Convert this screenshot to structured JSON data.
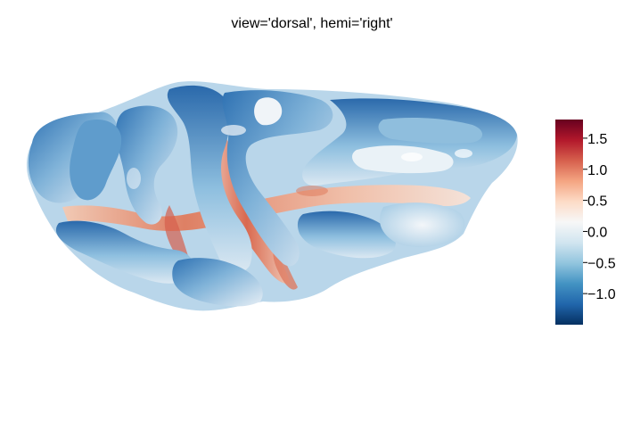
{
  "figure": {
    "title": "view='dorsal', hemi='right'"
  },
  "colorbar": {
    "colormap": "RdBu_r",
    "vmin": -1.5,
    "vmax": 1.8,
    "ticks": [
      {
        "value": 1.5,
        "label": "1.5"
      },
      {
        "value": 1.0,
        "label": "1.0"
      },
      {
        "value": 0.5,
        "label": "0.5"
      },
      {
        "value": 0.0,
        "label": "0.0"
      },
      {
        "value": -0.5,
        "label": "−0.5"
      },
      {
        "value": -1.0,
        "label": "−1.0"
      }
    ],
    "stops": [
      "#053061",
      "#2166ac",
      "#4393c3",
      "#92c5de",
      "#d1e5f0",
      "#f7f7f7",
      "#fddbc7",
      "#f4a582",
      "#d6604d",
      "#b2182b",
      "#67001f"
    ]
  },
  "colors": {
    "surface_low": "#2a6db0",
    "surface_mid": "#e9f0f6",
    "surface_high": "#cc4c3a"
  }
}
